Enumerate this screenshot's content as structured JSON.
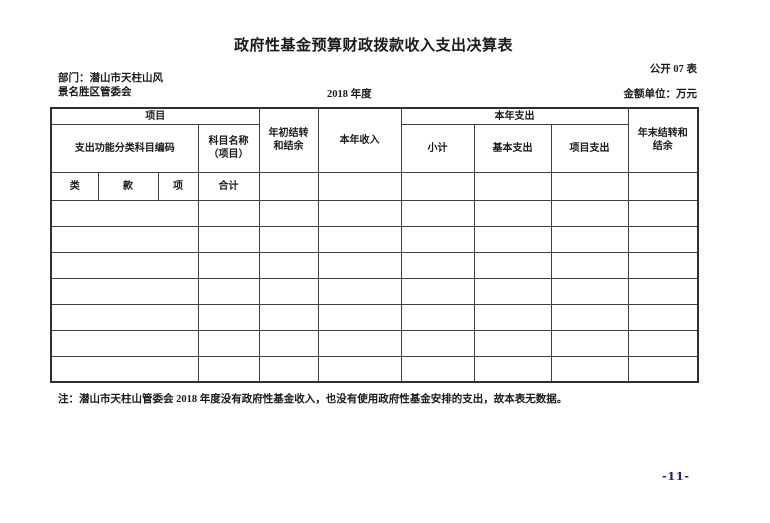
{
  "page": {
    "title": "政府性基金预算财政拨款收入支出决算表",
    "doc_code": "公开 07 表",
    "department_line1": "部门：潜山市天柱山风",
    "department_line2": "景名胜区管委会",
    "fiscal_year": "2018 年度",
    "amount_unit": "金额单位：万元",
    "note": "注：潜山市天柱山管委会 2018 年度没有政府性基金收入，也没有使用政府性基金安排的支出，故本表无数据。",
    "page_number": "-11-"
  },
  "table": {
    "header": {
      "project": "项目",
      "func_code": "支出功能分类科目编码",
      "subject_name": "科目名称\n（项目）",
      "begin_balance": "年初结转\n和结余",
      "year_income": "本年收入",
      "year_expenditure": "本年支出",
      "subtotal": "小计",
      "basic_expenditure": "基本支出",
      "project_expenditure": "项目支出",
      "end_balance": "年末结转和\n结余",
      "col_class": "类",
      "col_section": "款",
      "col_item": "项",
      "col_total": "合计"
    },
    "body_row_count": 7
  },
  "colors": {
    "text": "#1b1b1b",
    "border_inner": "#404040",
    "border_outer": "#2f2f2f",
    "page_number": "#22226e",
    "background": "#ffffff"
  }
}
